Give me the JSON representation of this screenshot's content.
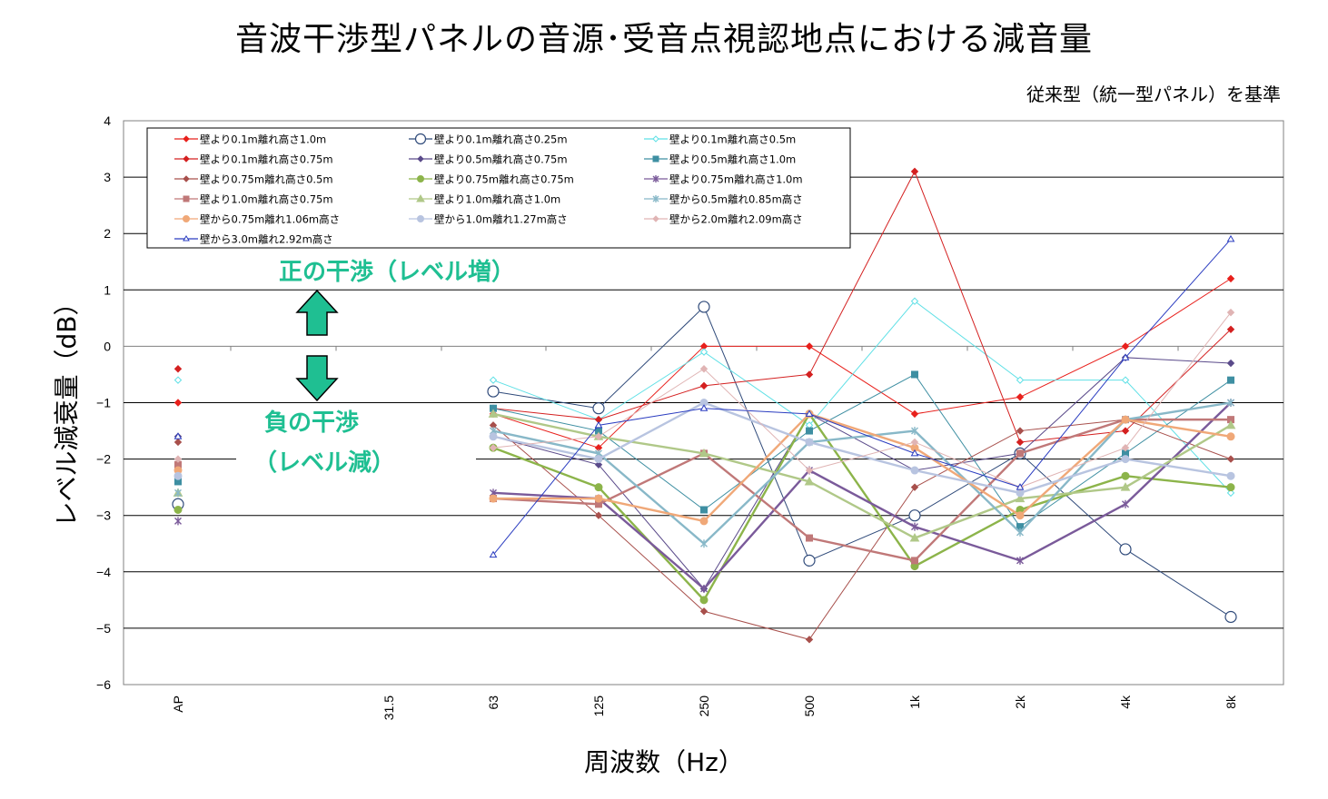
{
  "title": "音波干渉型パネルの音源･受音点視認地点における減音量",
  "subtitle": "従来型（統一型パネル）を基準",
  "annotations": {
    "positive": "正の干渉（レベル増）",
    "negative_1": "負の干渉",
    "negative_2": "（レベル減）"
  },
  "colors": {
    "arrow": "#1fbf92",
    "annotation": "#1fbf92"
  },
  "chart_data": {
    "type": "line",
    "title": "音波干渉型パネルの音源･受音点視認地点における減音量",
    "xlabel": "周波数（Hz）",
    "ylabel": "レベル減衰量（dB）",
    "categories": [
      "AP",
      "31.5",
      "63",
      "125",
      "250",
      "500",
      "1k",
      "2k",
      "4k",
      "8k"
    ],
    "ylim": [
      -6,
      4
    ],
    "yticks": [
      4,
      3,
      2,
      1,
      0,
      -1,
      -2,
      -3,
      -4,
      -5,
      -6
    ],
    "grid": true,
    "legend_position": "top-left",
    "series": [
      {
        "name": "壁より0.1m離れ高さ1.0m",
        "color": "#e8201c",
        "marker": "diamond-filled",
        "values": [
          -1.0,
          null,
          -1.2,
          -1.8,
          0.0,
          0.0,
          -1.2,
          -0.9,
          0.0,
          1.2
        ]
      },
      {
        "name": "壁より0.1m離れ高さ0.25m",
        "color": "#2f4a7a",
        "marker": "circle-open",
        "values": [
          -2.8,
          null,
          -0.8,
          -1.1,
          0.7,
          -3.8,
          -3.0,
          -1.9,
          -3.6,
          -4.8
        ]
      },
      {
        "name": "壁より0.1m離れ高さ0.5m",
        "color": "#5fe0e6",
        "marker": "diamond-open",
        "values": [
          -0.6,
          null,
          -0.6,
          -1.3,
          -0.1,
          -1.4,
          0.8,
          -0.6,
          -0.6,
          -2.6
        ]
      },
      {
        "name": "壁より0.1m離れ高さ0.75m",
        "color": "#d42020",
        "marker": "diamond-filled",
        "values": [
          -0.4,
          null,
          -1.1,
          -1.3,
          -0.7,
          -0.5,
          3.1,
          -1.7,
          -1.5,
          0.3
        ]
      },
      {
        "name": "壁より0.5m離れ高さ0.75m",
        "color": "#5a4a8a",
        "marker": "diamond-filled",
        "values": [
          -1.6,
          null,
          -1.6,
          -2.1,
          -4.3,
          -1.2,
          -2.2,
          -1.9,
          -0.2,
          -0.3
        ]
      },
      {
        "name": "壁より0.5m離れ高さ1.0m",
        "color": "#3e8fa2",
        "marker": "square-filled",
        "values": [
          -2.4,
          null,
          -1.1,
          -1.5,
          -2.9,
          -1.5,
          -0.5,
          -3.2,
          -1.9,
          -0.6
        ]
      },
      {
        "name": "壁より0.75m離れ高さ0.5m",
        "color": "#a8504c",
        "marker": "diamond-filled",
        "values": [
          -1.7,
          null,
          -1.4,
          -3.0,
          -4.7,
          -5.2,
          -2.5,
          -1.5,
          -1.3,
          -2.0
        ]
      },
      {
        "name": "壁より0.75m離れ高さ0.75m",
        "color": "#8cb44a",
        "marker": "circle-filled",
        "values": [
          -2.9,
          null,
          -1.8,
          -2.5,
          -4.5,
          -1.2,
          -3.9,
          -2.9,
          -2.3,
          -2.5
        ]
      },
      {
        "name": "壁より0.75m離れ高さ1.0m",
        "color": "#7a5a9a",
        "marker": "asterisk",
        "values": [
          -3.1,
          null,
          -2.6,
          -2.7,
          -4.3,
          -2.2,
          -3.2,
          -3.8,
          -2.8,
          -1.0
        ]
      },
      {
        "name": "壁より1.0m離れ高さ0.75m",
        "color": "#c07878",
        "marker": "square-filled",
        "values": [
          -2.1,
          null,
          -2.7,
          -2.8,
          -1.9,
          -3.4,
          -3.8,
          -1.9,
          -1.3,
          -1.3
        ]
      },
      {
        "name": "壁より1.0m離れ高さ1.0m",
        "color": "#b0c888",
        "marker": "triangle-filled",
        "values": [
          -2.6,
          null,
          -1.2,
          -1.6,
          -1.9,
          -2.4,
          -3.4,
          -2.7,
          -2.5,
          -1.4
        ]
      },
      {
        "name": "壁から0.5m離れ0.85m高さ",
        "color": "#88b8c8",
        "marker": "asterisk",
        "values": [
          -2.6,
          null,
          -1.5,
          -1.9,
          -3.5,
          -1.7,
          -1.5,
          -3.3,
          -1.3,
          -1.0
        ]
      },
      {
        "name": "壁から0.75m離れ1.06m高さ",
        "color": "#f0a878",
        "marker": "circle-filled",
        "values": [
          -2.2,
          null,
          -2.7,
          -2.7,
          -3.1,
          -1.2,
          -1.8,
          -3.0,
          -1.3,
          -1.6
        ]
      },
      {
        "name": "壁から1.0m離れ1.27m高さ",
        "color": "#b8c4e0",
        "marker": "circle-filled",
        "values": [
          -2.3,
          null,
          -1.6,
          -2.0,
          -1.0,
          -1.7,
          -2.2,
          -2.6,
          -2.0,
          -2.3
        ]
      },
      {
        "name": "壁から2.0m離れ2.09m高さ",
        "color": "#e0b4b4",
        "marker": "diamond-filled",
        "values": [
          -2.0,
          null,
          -1.8,
          -1.6,
          -0.4,
          -2.2,
          -1.7,
          -2.5,
          -1.8,
          0.6
        ]
      },
      {
        "name": "壁から3.0m離れ2.92m高さ",
        "color": "#2a3cc0",
        "marker": "triangle-open",
        "values": [
          -1.6,
          null,
          -3.7,
          -1.4,
          -1.1,
          -1.2,
          -1.9,
          -2.5,
          -0.2,
          1.9
        ]
      }
    ]
  }
}
